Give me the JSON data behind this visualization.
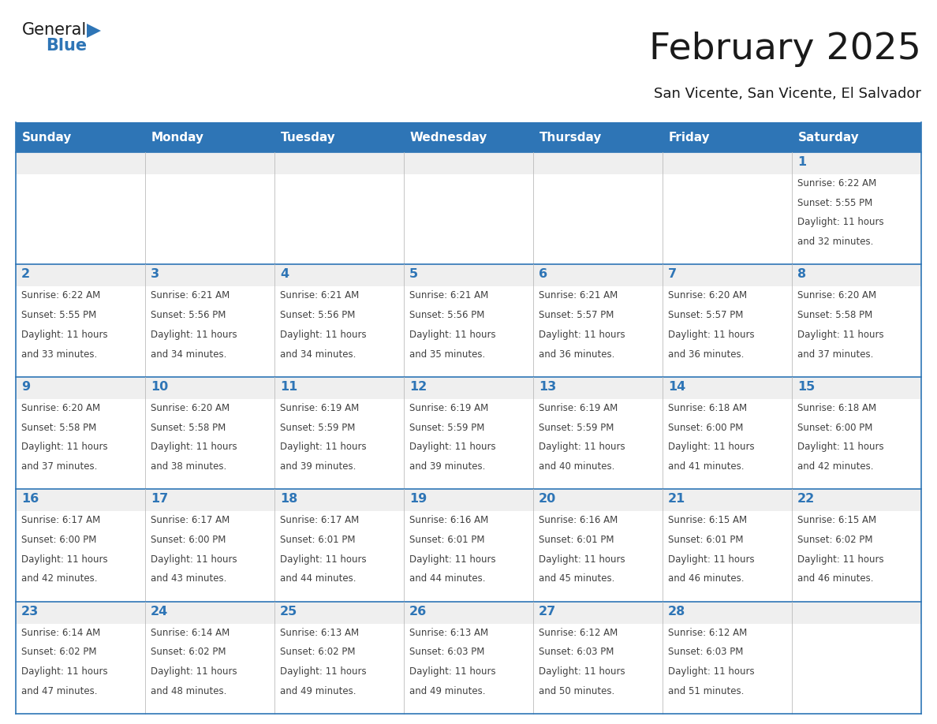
{
  "title": "February 2025",
  "subtitle": "San Vicente, San Vicente, El Salvador",
  "header_color": "#2E75B6",
  "header_text_color": "#FFFFFF",
  "cell_top_bg": "#EFEFEF",
  "cell_bg_color": "#FFFFFF",
  "border_color": "#2E75B6",
  "day_number_color": "#2E75B6",
  "text_color": "#404040",
  "days_of_week": [
    "Sunday",
    "Monday",
    "Tuesday",
    "Wednesday",
    "Thursday",
    "Friday",
    "Saturday"
  ],
  "calendar_data": [
    [
      {
        "day": null,
        "sunrise": null,
        "sunset": null,
        "daylight": null
      },
      {
        "day": null,
        "sunrise": null,
        "sunset": null,
        "daylight": null
      },
      {
        "day": null,
        "sunrise": null,
        "sunset": null,
        "daylight": null
      },
      {
        "day": null,
        "sunrise": null,
        "sunset": null,
        "daylight": null
      },
      {
        "day": null,
        "sunrise": null,
        "sunset": null,
        "daylight": null
      },
      {
        "day": null,
        "sunrise": null,
        "sunset": null,
        "daylight": null
      },
      {
        "day": 1,
        "sunrise": "6:22 AM",
        "sunset": "5:55 PM",
        "daylight": "11 hours and 32 minutes."
      }
    ],
    [
      {
        "day": 2,
        "sunrise": "6:22 AM",
        "sunset": "5:55 PM",
        "daylight": "11 hours and 33 minutes."
      },
      {
        "day": 3,
        "sunrise": "6:21 AM",
        "sunset": "5:56 PM",
        "daylight": "11 hours and 34 minutes."
      },
      {
        "day": 4,
        "sunrise": "6:21 AM",
        "sunset": "5:56 PM",
        "daylight": "11 hours and 34 minutes."
      },
      {
        "day": 5,
        "sunrise": "6:21 AM",
        "sunset": "5:56 PM",
        "daylight": "11 hours and 35 minutes."
      },
      {
        "day": 6,
        "sunrise": "6:21 AM",
        "sunset": "5:57 PM",
        "daylight": "11 hours and 36 minutes."
      },
      {
        "day": 7,
        "sunrise": "6:20 AM",
        "sunset": "5:57 PM",
        "daylight": "11 hours and 36 minutes."
      },
      {
        "day": 8,
        "sunrise": "6:20 AM",
        "sunset": "5:58 PM",
        "daylight": "11 hours and 37 minutes."
      }
    ],
    [
      {
        "day": 9,
        "sunrise": "6:20 AM",
        "sunset": "5:58 PM",
        "daylight": "11 hours and 37 minutes."
      },
      {
        "day": 10,
        "sunrise": "6:20 AM",
        "sunset": "5:58 PM",
        "daylight": "11 hours and 38 minutes."
      },
      {
        "day": 11,
        "sunrise": "6:19 AM",
        "sunset": "5:59 PM",
        "daylight": "11 hours and 39 minutes."
      },
      {
        "day": 12,
        "sunrise": "6:19 AM",
        "sunset": "5:59 PM",
        "daylight": "11 hours and 39 minutes."
      },
      {
        "day": 13,
        "sunrise": "6:19 AM",
        "sunset": "5:59 PM",
        "daylight": "11 hours and 40 minutes."
      },
      {
        "day": 14,
        "sunrise": "6:18 AM",
        "sunset": "6:00 PM",
        "daylight": "11 hours and 41 minutes."
      },
      {
        "day": 15,
        "sunrise": "6:18 AM",
        "sunset": "6:00 PM",
        "daylight": "11 hours and 42 minutes."
      }
    ],
    [
      {
        "day": 16,
        "sunrise": "6:17 AM",
        "sunset": "6:00 PM",
        "daylight": "11 hours and 42 minutes."
      },
      {
        "day": 17,
        "sunrise": "6:17 AM",
        "sunset": "6:00 PM",
        "daylight": "11 hours and 43 minutes."
      },
      {
        "day": 18,
        "sunrise": "6:17 AM",
        "sunset": "6:01 PM",
        "daylight": "11 hours and 44 minutes."
      },
      {
        "day": 19,
        "sunrise": "6:16 AM",
        "sunset": "6:01 PM",
        "daylight": "11 hours and 44 minutes."
      },
      {
        "day": 20,
        "sunrise": "6:16 AM",
        "sunset": "6:01 PM",
        "daylight": "11 hours and 45 minutes."
      },
      {
        "day": 21,
        "sunrise": "6:15 AM",
        "sunset": "6:01 PM",
        "daylight": "11 hours and 46 minutes."
      },
      {
        "day": 22,
        "sunrise": "6:15 AM",
        "sunset": "6:02 PM",
        "daylight": "11 hours and 46 minutes."
      }
    ],
    [
      {
        "day": 23,
        "sunrise": "6:14 AM",
        "sunset": "6:02 PM",
        "daylight": "11 hours and 47 minutes."
      },
      {
        "day": 24,
        "sunrise": "6:14 AM",
        "sunset": "6:02 PM",
        "daylight": "11 hours and 48 minutes."
      },
      {
        "day": 25,
        "sunrise": "6:13 AM",
        "sunset": "6:02 PM",
        "daylight": "11 hours and 49 minutes."
      },
      {
        "day": 26,
        "sunrise": "6:13 AM",
        "sunset": "6:03 PM",
        "daylight": "11 hours and 49 minutes."
      },
      {
        "day": 27,
        "sunrise": "6:12 AM",
        "sunset": "6:03 PM",
        "daylight": "11 hours and 50 minutes."
      },
      {
        "day": 28,
        "sunrise": "6:12 AM",
        "sunset": "6:03 PM",
        "daylight": "11 hours and 51 minutes."
      },
      {
        "day": null,
        "sunrise": null,
        "sunset": null,
        "daylight": null
      }
    ]
  ],
  "logo_text_general": "General",
  "logo_text_blue": "Blue",
  "logo_triangle_color": "#2E75B6",
  "logo_general_color": "#1a1a1a"
}
